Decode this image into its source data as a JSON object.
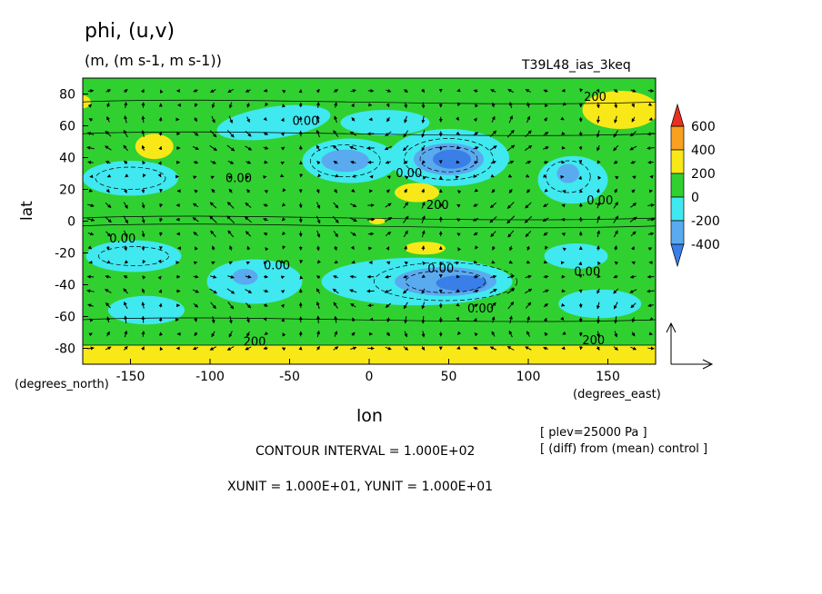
{
  "header": {
    "title": "phi, (u,v)",
    "units": "(m, (m s-1, m s-1))",
    "experiment": "T39L48_ias_3keq"
  },
  "axes": {
    "ylabel": "lat",
    "yunit": "(degrees_north)",
    "xlabel": "lon",
    "xunit": "(degrees_east)"
  },
  "footer": {
    "plev": "[ plev=25000 Pa ]",
    "diff": "[ (diff) from (mean) control ]",
    "contour_interval": "CONTOUR INTERVAL = 1.000E+02",
    "vector_units": "XUNIT = 1.000E+01, YUNIT = 1.000E+01"
  },
  "colors": {
    "lt_neg400": "#3a7ee8",
    "neg400_neg200": "#5aaaf0",
    "neg200_0": "#40e8f0",
    "0_200": "#30d030",
    "200_400": "#f8e818",
    "400_600": "#f8a020",
    "gt_600": "#e83020"
  },
  "chart_data": {
    "type": "contour",
    "variable": "phi",
    "x_range": [
      -180,
      180
    ],
    "y_range": [
      -90,
      90
    ],
    "x_ticks": [
      -150,
      -100,
      -50,
      0,
      50,
      100,
      150
    ],
    "y_ticks": [
      -80,
      -60,
      -40,
      -20,
      0,
      20,
      40,
      60,
      80
    ],
    "x_tick_labels": [
      "-150",
      "-100",
      "-50",
      "0",
      "50",
      "100",
      "150"
    ],
    "y_tick_labels": [
      "-80",
      "-60",
      "-40",
      "-20",
      "0",
      "20",
      "40",
      "60",
      "80"
    ],
    "contour_levels": [
      -400,
      -200,
      0,
      200,
      400,
      600
    ],
    "colorbar_labels": [
      "600",
      "400",
      "200",
      "0",
      "-200",
      "-400"
    ],
    "contour_labels": [
      {
        "text": "0.00",
        "lon": -40,
        "lat": 63
      },
      {
        "text": "0.00",
        "lon": -82,
        "lat": 27
      },
      {
        "text": "0.00",
        "lon": 25,
        "lat": 30
      },
      {
        "text": "200",
        "lon": 43,
        "lat": 10
      },
      {
        "text": "200",
        "lon": 142,
        "lat": 78
      },
      {
        "text": "0.00",
        "lon": 145,
        "lat": 13
      },
      {
        "text": "0.00",
        "lon": -155,
        "lat": -11
      },
      {
        "text": "0.00",
        "lon": -58,
        "lat": -28
      },
      {
        "text": "0.00",
        "lon": 45,
        "lat": -30
      },
      {
        "text": "0.00",
        "lon": 137,
        "lat": -32
      },
      {
        "text": "0.00",
        "lon": 70,
        "lat": -55
      },
      {
        "text": "200",
        "lon": -72,
        "lat": -76
      },
      {
        "text": "200",
        "lon": 141,
        "lat": -75
      }
    ],
    "features": [
      {
        "type": "low",
        "lon": 50,
        "lat": 38,
        "value_range": "<-400"
      },
      {
        "type": "low",
        "lon": -20,
        "lat": 37,
        "value_range": "-400 to -200"
      },
      {
        "type": "low",
        "lon": 55,
        "lat": -38,
        "value_range": "<-400"
      },
      {
        "type": "low",
        "lon": -75,
        "lat": -38,
        "value_range": "-400 to -200"
      },
      {
        "type": "low",
        "lon": 125,
        "lat": 28,
        "value_range": "-400 to -200"
      },
      {
        "type": "high",
        "lon": -135,
        "lat": 45,
        "value_range": "200 to 400"
      },
      {
        "type": "high",
        "lon": 155,
        "lat": 70,
        "value_range": "200 to 400"
      },
      {
        "type": "high",
        "lon": 28,
        "lat": 15,
        "value_range": "200 to 400"
      },
      {
        "type": "high",
        "lon": 35,
        "lat": -18,
        "value_range": "200 to 400"
      },
      {
        "type": "high",
        "lon": 0,
        "lat": -82,
        "value_range": "200 to 400"
      }
    ],
    "vector_reference": {
      "xunit": 10,
      "yunit": 10
    },
    "grid": false
  }
}
